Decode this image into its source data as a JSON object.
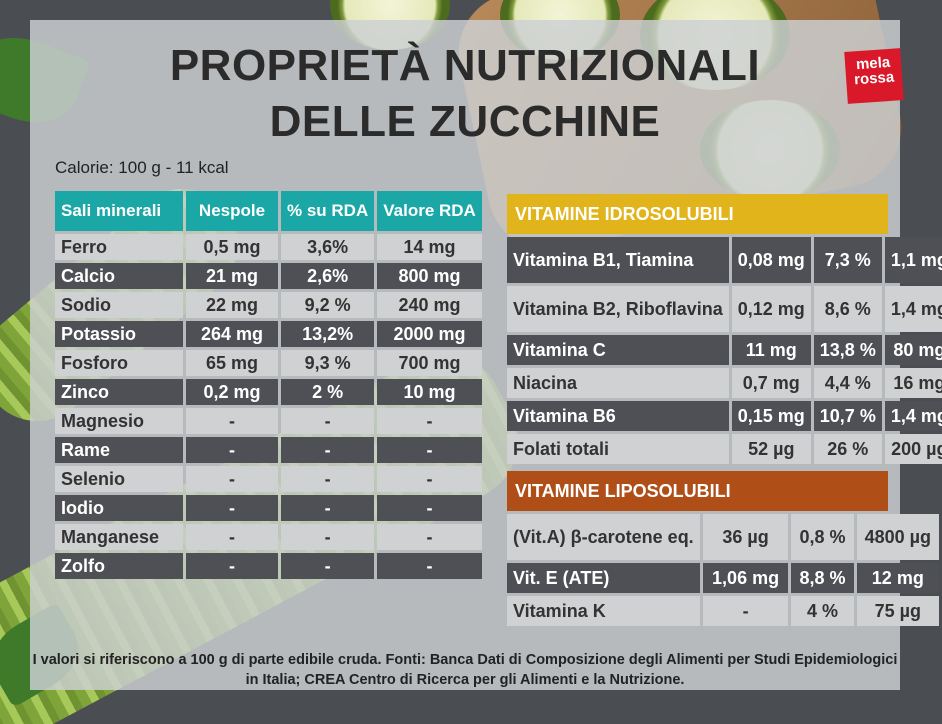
{
  "title": {
    "line1": "PROPRIETÀ NUTRIZIONALI",
    "line2": "DELLE ZUCCHINE"
  },
  "logo": {
    "line1": "mela",
    "line2": "rossa"
  },
  "calories": "Calorie: 100 g - 11 kcal",
  "minerals": {
    "headers": [
      "Sali minerali",
      "Nespole",
      "% su RDA",
      "Valore RDA"
    ],
    "rows": [
      [
        "Ferro",
        "0,5 mg",
        "3,6%",
        "14 mg"
      ],
      [
        "Calcio",
        "21 mg",
        "2,6%",
        "800 mg"
      ],
      [
        "Sodio",
        "22 mg",
        "9,2 %",
        "240 mg"
      ],
      [
        "Potassio",
        "264 mg",
        "13,2%",
        "2000 mg"
      ],
      [
        "Fosforo",
        "65 mg",
        "9,3 %",
        "700 mg"
      ],
      [
        "Zinco",
        "0,2 mg",
        "2 %",
        "10 mg"
      ],
      [
        "Magnesio",
        "-",
        "-",
        "-"
      ],
      [
        "Rame",
        "-",
        "-",
        "-"
      ],
      [
        "Selenio",
        "-",
        "-",
        "-"
      ],
      [
        "Iodio",
        "-",
        "-",
        "-"
      ],
      [
        "Manganese",
        "-",
        "-",
        "-"
      ],
      [
        "Zolfo",
        "-",
        "-",
        "-"
      ]
    ]
  },
  "vitamins_water": {
    "title": "VITAMINE IDROSOLUBILI",
    "rows": [
      [
        "Vitamina B1, Tiamina",
        "0,08 mg",
        "7,3 %",
        "1,1 mg"
      ],
      [
        "Vitamina B2, Riboflavina",
        "0,12 mg",
        "8,6 %",
        "1,4 mg"
      ],
      [
        "Vitamina C",
        "11 mg",
        "13,8 %",
        "80 mg"
      ],
      [
        "Niacina",
        "0,7 mg",
        "4,4 %",
        "16 mg"
      ],
      [
        "Vitamina B6",
        "0,15 mg",
        "10,7 %",
        "1,4 mg"
      ],
      [
        "Folati totali",
        "52 µg",
        "26 %",
        "200 µg"
      ]
    ]
  },
  "vitamins_fat": {
    "title": "VITAMINE LIPOSOLUBILI",
    "rows": [
      [
        "(Vit.A) β-carotene eq.",
        "36 µg",
        "0,8 %",
        "4800 µg"
      ],
      [
        "Vit. E (ATE)",
        "1,06 mg",
        "8,8 %",
        "12 mg"
      ],
      [
        "Vitamina K",
        "-",
        "4 %",
        "75 µg"
      ]
    ]
  },
  "footnote": "I valori si riferiscono a 100 g di parte edibile cruda. Fonti: Banca Dati di Composizione degli Alimenti per Studi Epidemiologici in Italia; CREA Centro di Ricerca per gli Alimenti e la Nutrizione.",
  "colors": {
    "minerals_header": "#1aa7a6",
    "idro_header": "#e2b41b",
    "lipo_header": "#b04e17",
    "row_dark": "#4e5056",
    "row_light": "#cfd1d3",
    "logo": "#d9192a"
  }
}
